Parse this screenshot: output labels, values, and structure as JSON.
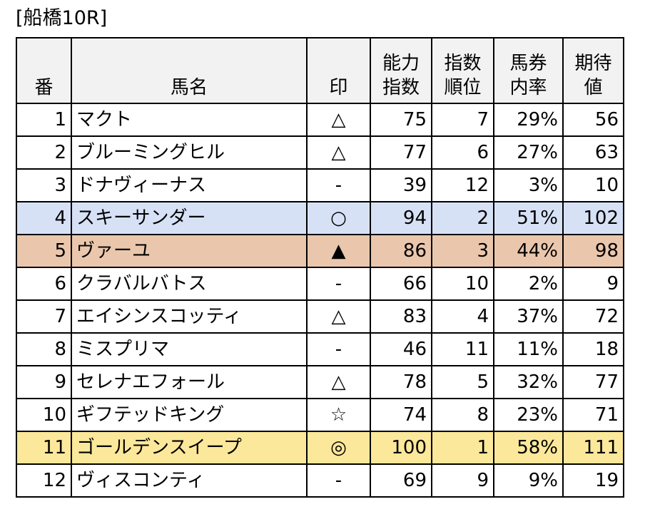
{
  "title": "[船橋10R]",
  "headers": {
    "ban": "番",
    "name": "馬名",
    "mark": "印",
    "ability": [
      "能力",
      "指数"
    ],
    "rank": [
      "指数",
      "順位"
    ],
    "rate": [
      "馬券",
      "内率"
    ],
    "ev": [
      "期待",
      "値"
    ]
  },
  "rows": [
    {
      "ban": "1",
      "name": "マクト",
      "mark": "△",
      "ability": "75",
      "rank": "7",
      "rate": "29%",
      "ev": "56",
      "highlight": ""
    },
    {
      "ban": "2",
      "name": "ブルーミングヒル",
      "mark": "△",
      "ability": "77",
      "rank": "6",
      "rate": "27%",
      "ev": "63",
      "highlight": ""
    },
    {
      "ban": "3",
      "name": "ドナヴィーナス",
      "mark": "-",
      "ability": "39",
      "rank": "12",
      "rate": "3%",
      "ev": "10",
      "highlight": ""
    },
    {
      "ban": "4",
      "name": "スキーサンダー",
      "mark": "○",
      "ability": "94",
      "rank": "2",
      "rate": "51%",
      "ev": "102",
      "highlight": "#d7e1f6"
    },
    {
      "ban": "5",
      "name": "ヴァーユ",
      "mark": "▲",
      "ability": "86",
      "rank": "3",
      "rate": "44%",
      "ev": "98",
      "highlight": "#eac7ac"
    },
    {
      "ban": "6",
      "name": "クラバルバトス",
      "mark": "-",
      "ability": "66",
      "rank": "10",
      "rate": "2%",
      "ev": "9",
      "highlight": ""
    },
    {
      "ban": "7",
      "name": "エイシンスコッティ",
      "mark": "△",
      "ability": "83",
      "rank": "4",
      "rate": "37%",
      "ev": "72",
      "highlight": ""
    },
    {
      "ban": "8",
      "name": "ミスプリマ",
      "mark": "-",
      "ability": "46",
      "rank": "11",
      "rate": "11%",
      "ev": "18",
      "highlight": ""
    },
    {
      "ban": "9",
      "name": "セレナエフォール",
      "mark": "△",
      "ability": "78",
      "rank": "5",
      "rate": "32%",
      "ev": "77",
      "highlight": ""
    },
    {
      "ban": "10",
      "name": "ギフテッドキング",
      "mark": "☆",
      "ability": "74",
      "rank": "8",
      "rate": "23%",
      "ev": "71",
      "highlight": ""
    },
    {
      "ban": "11",
      "name": "ゴールデンスイープ",
      "mark": "◎",
      "ability": "100",
      "rank": "1",
      "rate": "58%",
      "ev": "111",
      "highlight": "#fbe89a"
    },
    {
      "ban": "12",
      "name": "ヴィスコンティ",
      "mark": "-",
      "ability": "69",
      "rank": "9",
      "rate": "9%",
      "ev": "19",
      "highlight": ""
    }
  ]
}
